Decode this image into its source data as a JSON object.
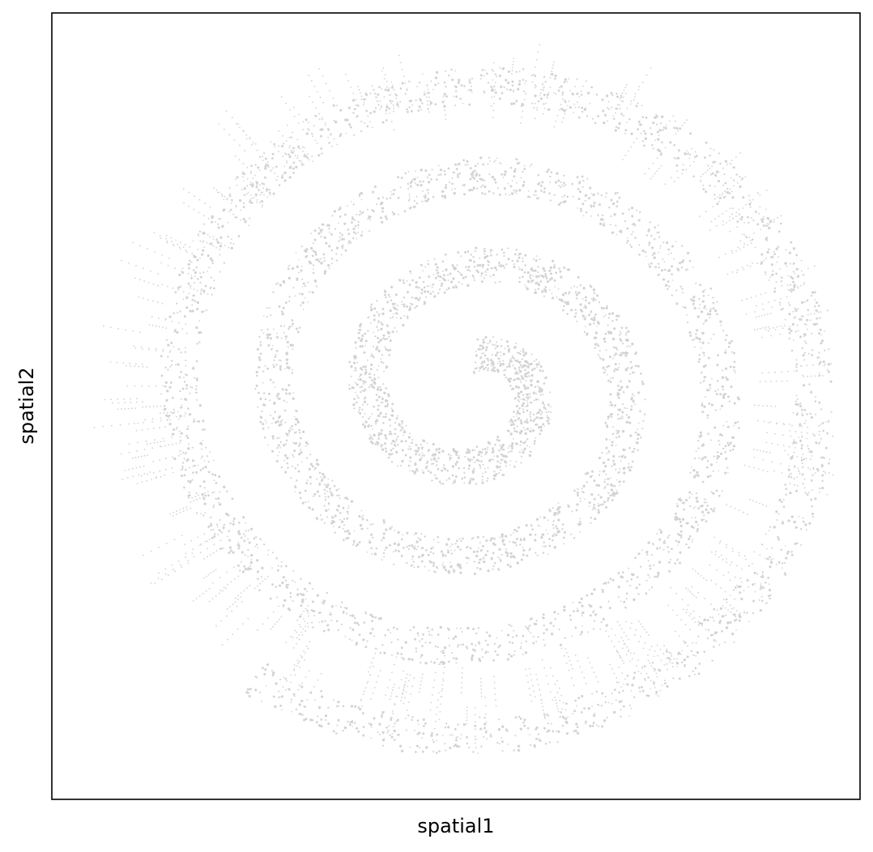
{
  "chart_data": {
    "type": "scatter",
    "title": "",
    "xlabel": "spatial1",
    "ylabel": "spatial2",
    "x_ticks": [],
    "y_ticks": [],
    "grid": false,
    "legend": "none",
    "point_color": "#d3d3d3",
    "description_of_points": "spiral-shaped tissue section (Swiss-roll) of many small light-grey points"
  },
  "colors": {
    "frame": "#000000",
    "background": "#ffffff",
    "points": "#d3d3d3"
  }
}
